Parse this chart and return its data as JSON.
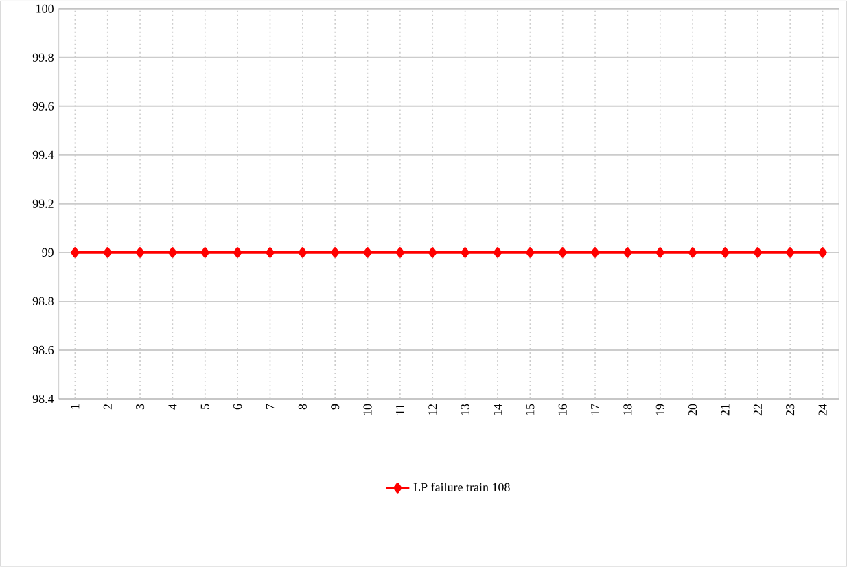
{
  "chart_data": {
    "type": "line",
    "categories": [
      "1",
      "2",
      "3",
      "4",
      "5",
      "6",
      "7",
      "8",
      "9",
      "10",
      "11",
      "12",
      "13",
      "14",
      "15",
      "16",
      "17",
      "18",
      "19",
      "20",
      "21",
      "22",
      "23",
      "24"
    ],
    "series": [
      {
        "name": "LP failure train 108",
        "color": "#ff0000",
        "values": [
          99,
          99,
          99,
          99,
          99,
          99,
          99,
          99,
          99,
          99,
          99,
          99,
          99,
          99,
          99,
          99,
          99,
          99,
          99,
          99,
          99,
          99,
          99,
          99
        ]
      }
    ],
    "ylim": [
      98.4,
      100
    ],
    "yticks": [
      98.4,
      98.6,
      98.8,
      99,
      99.2,
      99.4,
      99.6,
      99.8,
      100
    ],
    "grid": true,
    "legend": "bottom",
    "marker": "diamond",
    "line_style": "solid"
  }
}
